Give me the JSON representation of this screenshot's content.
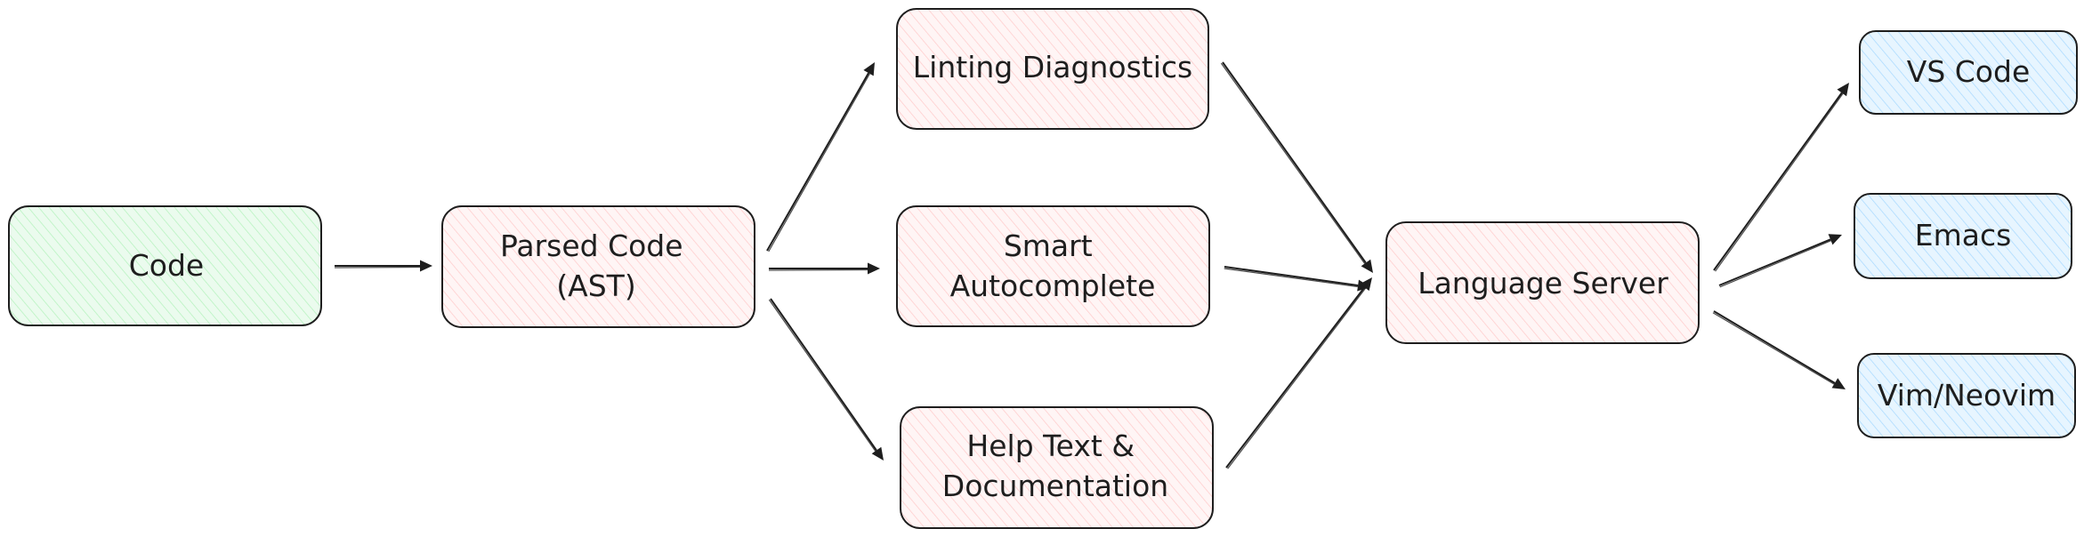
{
  "colors": {
    "green_fill": "#ebfbee",
    "green_hatch": "#b2f2bb",
    "red_fill": "#fff5f5",
    "red_hatch": "#ffc9c9",
    "blue_fill": "#e7f5ff",
    "blue_hatch": "#a5d8ff",
    "stroke": "#1e1e1e"
  },
  "nodes": {
    "code": {
      "lines": [
        "Code"
      ],
      "color": "green"
    },
    "parsed": {
      "lines": [
        "Parsed Code",
        "(AST)"
      ],
      "color": "red"
    },
    "linting": {
      "lines": [
        "Linting Diagnostics"
      ],
      "color": "red"
    },
    "autocomplete": {
      "lines": [
        "Smart",
        "Autocomplete"
      ],
      "color": "red"
    },
    "help": {
      "lines": [
        "Help Text &",
        "Documentation"
      ],
      "color": "red"
    },
    "server": {
      "lines": [
        "Language Server"
      ],
      "color": "red"
    },
    "vscode": {
      "lines": [
        "VS Code"
      ],
      "color": "blue"
    },
    "emacs": {
      "lines": [
        "Emacs"
      ],
      "color": "blue"
    },
    "vim": {
      "lines": [
        "Vim/Neovim"
      ],
      "color": "blue"
    }
  },
  "edges": [
    {
      "from": "code",
      "to": "parsed"
    },
    {
      "from": "parsed",
      "to": "linting"
    },
    {
      "from": "parsed",
      "to": "autocomplete"
    },
    {
      "from": "parsed",
      "to": "help"
    },
    {
      "from": "linting",
      "to": "server"
    },
    {
      "from": "autocomplete",
      "to": "server"
    },
    {
      "from": "help",
      "to": "server"
    },
    {
      "from": "server",
      "to": "vscode"
    },
    {
      "from": "server",
      "to": "emacs"
    },
    {
      "from": "server",
      "to": "vim"
    }
  ]
}
